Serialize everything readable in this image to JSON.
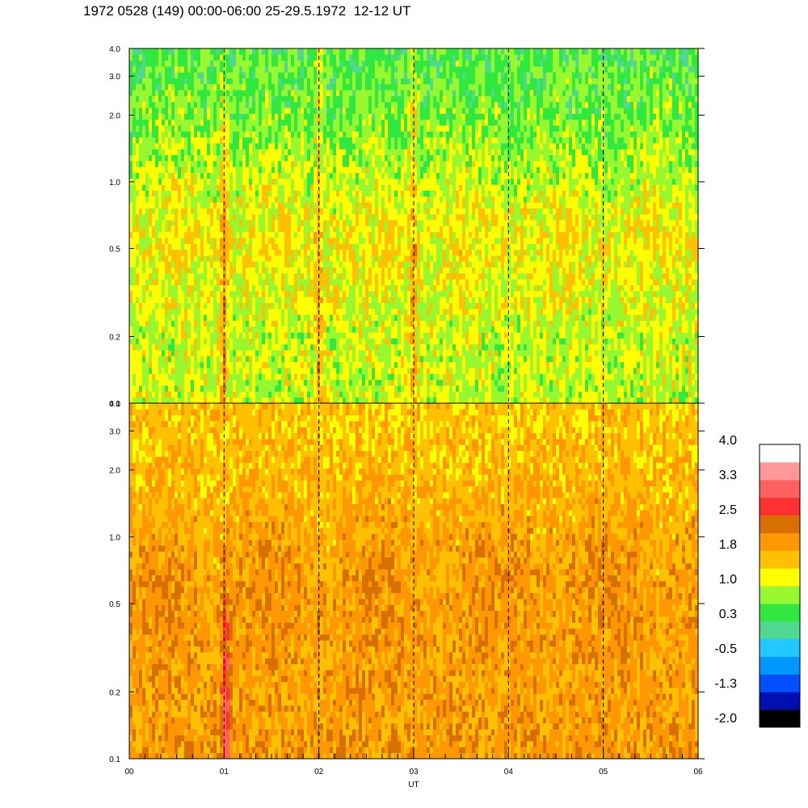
{
  "title": "1972 0528 (149) 00:00-06:00 25-29.5.1972  12-12 UT",
  "chart_data": {
    "type": "heatmap",
    "title": "1972 0528 (149) 00:00-06:00 25-29.5.1972  12-12 UT",
    "xlabel": "UT",
    "xlim": [
      0,
      6
    ],
    "x_ticks": [
      0,
      1,
      2,
      3,
      4,
      5,
      6
    ],
    "x_tick_labels": [
      "00",
      "01",
      "02",
      "03",
      "04",
      "05",
      "06"
    ],
    "y_scale": "log",
    "ylim": [
      0.1,
      4.0
    ],
    "panels": [
      {
        "name": "top",
        "y_ticks": [
          0.1,
          0.2,
          0.5,
          1.0,
          2.0,
          3.0,
          4.0
        ],
        "y_tick_labels": [
          "0.1",
          "0.2",
          "0.5",
          "1.0",
          "2.0",
          "3.0",
          "4.0"
        ],
        "dominant_levels": "0.3 to 1.8",
        "enhancements_ut": [
          1.0,
          2.0,
          3.0
        ]
      },
      {
        "name": "bottom",
        "y_ticks": [
          0.1,
          0.2,
          0.5,
          1.0,
          2.0,
          3.0,
          4.0
        ],
        "y_tick_labels": [
          "0.1",
          "0.2",
          "0.5",
          "1.0",
          "2.0",
          "3.0",
          "4.0"
        ],
        "dominant_levels": "1.0 to 2.5",
        "enhancements_ut": [
          1.0
        ]
      }
    ],
    "dashed_lines_ut": [
      1,
      2,
      3,
      4,
      5
    ],
    "colorbar": {
      "labels": [
        "4.0",
        "3.3",
        "2.5",
        "1.8",
        "1.0",
        "0.3",
        "-0.5",
        "-1.3",
        "-2.0"
      ],
      "range": [
        -2.0,
        4.0
      ],
      "colors": [
        "#000000",
        "#0010b0",
        "#0050ff",
        "#0098ff",
        "#20c8ff",
        "#50d890",
        "#30e840",
        "#98f830",
        "#ffff00",
        "#ffc000",
        "#ff9800",
        "#d87000",
        "#ff3030",
        "#ff6060",
        "#ff9898",
        "#ffffff"
      ]
    }
  }
}
